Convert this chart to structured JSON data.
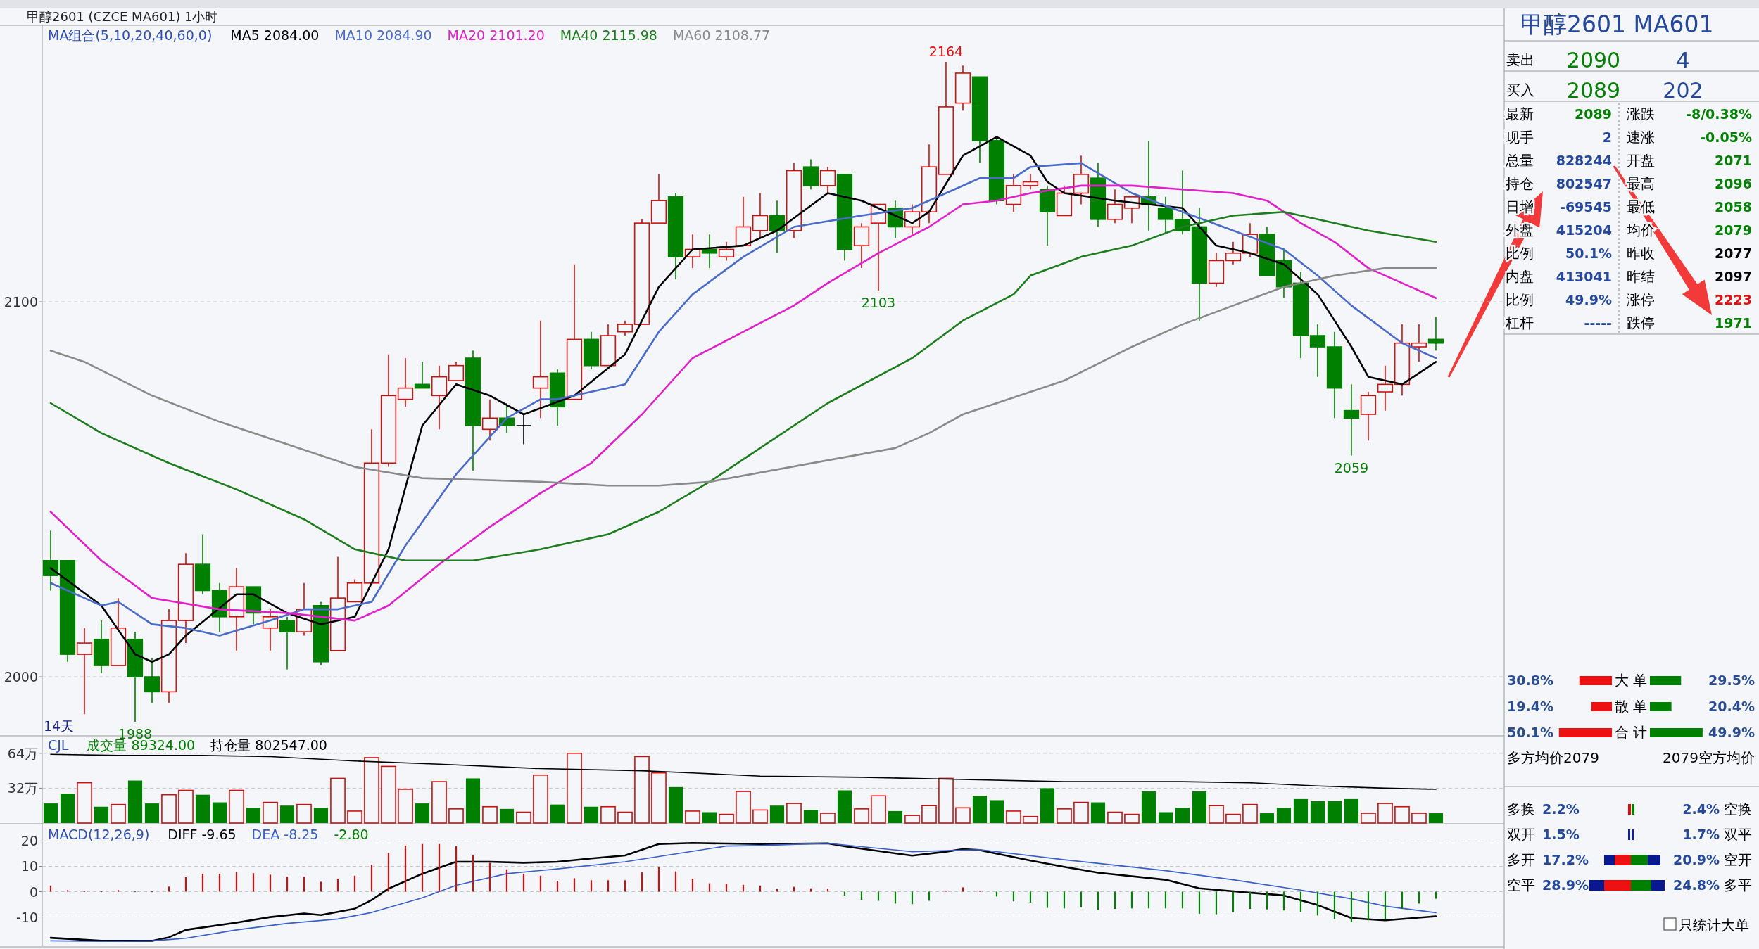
{
  "chart_data": [
    {
      "type": "candlestick",
      "title": "甲醇2601 (CZCE MA601)",
      "subtitle": "1小时",
      "legend_title": "MA组合(5,10,20,40,60,0)",
      "legend": "top left",
      "grid": "y",
      "ylim": [
        1985,
        2173
      ],
      "yticks": [
        2000,
        2100
      ],
      "categories": [
        null,
        null,
        null,
        null,
        null,
        null,
        null,
        null,
        null,
        null,
        null,
        null,
        null,
        null,
        null,
        null,
        null,
        null,
        null,
        null,
        null,
        null,
        null,
        null,
        null,
        null,
        null,
        null,
        null,
        null,
        null,
        null,
        null,
        null,
        null,
        null,
        null,
        null,
        null,
        null,
        null,
        null,
        null,
        null,
        null,
        null,
        null,
        null,
        null,
        null,
        null,
        null,
        null,
        null,
        null,
        null,
        null,
        null,
        null,
        null,
        null,
        null,
        null,
        null,
        null,
        null,
        null,
        null,
        null,
        null,
        null,
        null,
        null,
        null,
        null,
        null,
        null,
        null,
        null,
        null,
        null,
        null,
        null
      ],
      "ohlc": [
        [
          2031,
          2039,
          2023,
          2027
        ],
        [
          2031,
          2031,
          2004,
          2006
        ],
        [
          2006,
          2013,
          1990,
          2009
        ],
        [
          2010,
          2015,
          2001,
          2003
        ],
        [
          2003,
          2021,
          2003,
          2013
        ],
        [
          2010,
          2012,
          1988,
          2000
        ],
        [
          2000,
          2005,
          1993,
          1996
        ],
        [
          1996,
          2018,
          1993,
          2015
        ],
        [
          2015,
          2033,
          2009,
          2030
        ],
        [
          2030,
          2038,
          2022,
          2023
        ],
        [
          2023,
          2025,
          2012,
          2016
        ],
        [
          2016,
          2029,
          2007,
          2024
        ],
        [
          2024,
          2024,
          2014,
          2017
        ],
        [
          2013,
          2018,
          2007,
          2016
        ],
        [
          2015,
          2016,
          2002,
          2012
        ],
        [
          2012,
          2025,
          2011,
          2018
        ],
        [
          2019,
          2020,
          2003,
          2004
        ],
        [
          2007,
          2032,
          2007,
          2021
        ],
        [
          2020,
          2026,
          2020,
          2025
        ],
        [
          2025,
          2066,
          2025,
          2057
        ],
        [
          2057,
          2086,
          2056,
          2075
        ],
        [
          2074,
          2085,
          2072,
          2077
        ],
        [
          2078,
          2084,
          2077,
          2077
        ],
        [
          2075,
          2083,
          2066,
          2080
        ],
        [
          2079,
          2084,
          2079,
          2083
        ],
        [
          2085,
          2087,
          2055,
          2067
        ],
        [
          2066,
          2074,
          2063,
          2069
        ],
        [
          2069,
          2073,
          2065,
          2067
        ],
        [
          2067,
          2070,
          2062,
          2067
        ],
        [
          2077,
          2095,
          2069,
          2080
        ],
        [
          2081,
          2082,
          2067,
          2072
        ],
        [
          2074,
          2110,
          2074,
          2090
        ],
        [
          2090,
          2092,
          2082,
          2083
        ],
        [
          2083,
          2094,
          2083,
          2091
        ],
        [
          2092,
          2095,
          2091,
          2094
        ],
        [
          2094,
          2122,
          2094,
          2121
        ],
        [
          2121,
          2134,
          2121,
          2127
        ],
        [
          2128,
          2129,
          2106,
          2112
        ],
        [
          2112,
          2118,
          2109,
          2114
        ],
        [
          2114,
          2118,
          2109,
          2113
        ],
        [
          2112,
          2116,
          2111,
          2114
        ],
        [
          2115,
          2128,
          2115,
          2120
        ],
        [
          2119,
          2129,
          2117,
          2123
        ],
        [
          2123,
          2127,
          2113,
          2119
        ],
        [
          2119,
          2137,
          2117,
          2135
        ],
        [
          2136,
          2138,
          2130,
          2131
        ],
        [
          2131,
          2136,
          2129,
          2135
        ],
        [
          2134,
          2134,
          2111,
          2114
        ],
        [
          2115,
          2121,
          2109,
          2120
        ],
        [
          2121,
          2126,
          2103,
          2126
        ],
        [
          2125,
          2127,
          2117,
          2120
        ],
        [
          2120,
          2126,
          2118,
          2124
        ],
        [
          2124,
          2142,
          2121,
          2136
        ],
        [
          2134,
          2164,
          2134,
          2152
        ],
        [
          2153,
          2163,
          2151,
          2161
        ],
        [
          2160,
          2160,
          2137,
          2143
        ],
        [
          2143,
          2144,
          2126,
          2127
        ],
        [
          2126,
          2134,
          2124,
          2131
        ],
        [
          2131,
          2134,
          2130,
          2132
        ],
        [
          2130,
          2131,
          2115,
          2124
        ],
        [
          2123,
          2131,
          2123,
          2129
        ],
        [
          2129,
          2139,
          2126,
          2134
        ],
        [
          2133,
          2137,
          2120,
          2122
        ],
        [
          2122,
          2130,
          2121,
          2126
        ],
        [
          2125,
          2128,
          2121,
          2128
        ],
        [
          2128,
          2143,
          2119,
          2126
        ],
        [
          2125,
          2128,
          2118,
          2122
        ],
        [
          2122,
          2135,
          2118,
          2119
        ],
        [
          2120,
          2125,
          2095,
          2105
        ],
        [
          2105,
          2113,
          2104,
          2111
        ],
        [
          2111,
          2116,
          2110,
          2113
        ],
        [
          2113,
          2121,
          2112,
          2118
        ],
        [
          2118,
          2120,
          2107,
          2107
        ],
        [
          2111,
          2114,
          2101,
          2104
        ],
        [
          2105,
          2108,
          2085,
          2091
        ],
        [
          2091,
          2094,
          2080,
          2088
        ],
        [
          2088,
          2092,
          2069,
          2077
        ],
        [
          2071,
          2078,
          2059,
          2069
        ],
        [
          2070,
          2076,
          2063,
          2075
        ],
        [
          2076,
          2083,
          2071,
          2078
        ],
        [
          2078,
          2094,
          2075,
          2089
        ],
        [
          2088,
          2094,
          2084,
          2089
        ],
        [
          2090,
          2096,
          2087,
          2089
        ]
      ],
      "series": [
        {
          "name": "MA5 2084.00",
          "type": "line",
          "color": "#000000",
          "values": [
            2029,
            null,
            null,
            2019,
            null,
            2006,
            2004,
            2006,
            2011,
            null,
            null,
            2022,
            2022,
            null,
            2017,
            null,
            2014,
            null,
            2016,
            null,
            2034,
            null,
            2067,
            null,
            2078,
            null,
            2075,
            null,
            2070,
            null,
            null,
            2075,
            null,
            null,
            2086,
            null,
            2104,
            null,
            2114,
            null,
            null,
            2115,
            null,
            2119,
            null,
            null,
            2129,
            null,
            2127,
            null,
            null,
            2121,
            2124,
            null,
            2139,
            null,
            2144,
            null,
            2139,
            2132,
            2129,
            null,
            null,
            2127,
            null,
            null,
            null,
            2125,
            null,
            2115,
            null,
            2113,
            null,
            2110,
            null,
            2102,
            null,
            2088,
            2080,
            null,
            2078,
            null,
            2084
          ]
        },
        {
          "name": "MA10 2084.90",
          "type": "line",
          "color": "#4a6cc8",
          "values": [
            2025,
            null,
            2021,
            2019,
            2020,
            null,
            2014,
            null,
            2013,
            null,
            2011,
            null,
            null,
            2015,
            null,
            2018,
            null,
            2018,
            null,
            2020,
            null,
            2035,
            null,
            null,
            2054,
            null,
            null,
            2069,
            null,
            2074,
            2074,
            null,
            null,
            null,
            2078,
            null,
            2092,
            null,
            2102,
            null,
            null,
            2112,
            null,
            null,
            2120,
            null,
            null,
            null,
            2123,
            null,
            null,
            2125,
            null,
            null,
            null,
            2133,
            null,
            2133,
            2136,
            null,
            null,
            2137,
            null,
            null,
            2129,
            null,
            null,
            2124,
            null,
            null,
            2119,
            null,
            null,
            2114,
            null,
            2107,
            null,
            2099,
            null,
            null,
            2089,
            null,
            2085
          ]
        },
        {
          "name": "MA20 2101.20",
          "type": "line",
          "color": "#e020c8",
          "values": [
            2044,
            null,
            null,
            2031,
            null,
            null,
            2021,
            null,
            null,
            null,
            2018,
            null,
            null,
            null,
            2017,
            null,
            null,
            null,
            2015,
            null,
            2019,
            null,
            null,
            2030,
            null,
            null,
            2040,
            null,
            null,
            2049,
            null,
            null,
            2057,
            null,
            null,
            2070,
            null,
            null,
            2085,
            null,
            null,
            2092,
            null,
            null,
            2099,
            null,
            2105,
            null,
            null,
            2113,
            null,
            null,
            2120,
            null,
            2126,
            null,
            2127,
            null,
            2129,
            null,
            null,
            2131,
            null,
            null,
            2131,
            null,
            null,
            2130,
            null,
            null,
            2129,
            null,
            2127,
            null,
            2121,
            null,
            2116,
            null,
            2109,
            null,
            2105,
            null,
            2101
          ]
        },
        {
          "name": "MA40 2115.98",
          "type": "line",
          "color": "#1e7d1e",
          "values": [
            2073,
            null,
            null,
            2065,
            null,
            null,
            null,
            2057,
            null,
            null,
            null,
            2050,
            null,
            null,
            null,
            2042,
            null,
            null,
            2034,
            null,
            null,
            2031,
            null,
            null,
            null,
            2031,
            null,
            null,
            null,
            2034,
            null,
            null,
            null,
            2038,
            null,
            null,
            2044,
            null,
            null,
            2052,
            null,
            null,
            2061,
            null,
            null,
            null,
            2073,
            null,
            null,
            null,
            null,
            2085,
            null,
            null,
            2095,
            null,
            null,
            2102,
            2107,
            null,
            null,
            2112,
            null,
            null,
            2115,
            null,
            null,
            2120,
            null,
            null,
            2123,
            null,
            null,
            2124,
            null,
            2122,
            null,
            null,
            2119,
            null,
            null,
            null,
            2116
          ]
        },
        {
          "name": "MA60 2108.77",
          "type": "line",
          "color": "#8a8a8a",
          "values": [
            2087,
            null,
            2084,
            null,
            null,
            null,
            2075,
            null,
            null,
            null,
            2068,
            null,
            null,
            null,
            2062,
            null,
            null,
            null,
            2056,
            null,
            null,
            null,
            2053,
            null,
            null,
            null,
            null,
            null,
            null,
            2052,
            null,
            null,
            null,
            2051,
            null,
            null,
            2051,
            null,
            null,
            2052,
            null,
            null,
            null,
            null,
            null,
            null,
            null,
            null,
            null,
            null,
            2061,
            null,
            2065,
            null,
            2070,
            null,
            2073,
            null,
            null,
            null,
            2079,
            null,
            null,
            null,
            2088,
            null,
            null,
            2094,
            null,
            null,
            2099,
            null,
            null,
            2104,
            null,
            null,
            2107,
            null,
            null,
            2109,
            null,
            null,
            2109
          ]
        }
      ],
      "annotations": [
        {
          "text": "2164",
          "y": 2164
        },
        {
          "text": "2103",
          "y": 2103
        },
        {
          "text": "2059",
          "y": 2059
        },
        {
          "text": "1988",
          "y": 1988
        },
        "14天"
      ]
    },
    {
      "type": "bar",
      "legend_title": "CJL",
      "legend": "top left",
      "grid": "y",
      "ylim": [
        0,
        80
      ],
      "yticks": [
        {
          "value": 32,
          "label": "32万"
        },
        {
          "value": 64,
          "label": "64万"
        }
      ],
      "categories": [
        null,
        null,
        null,
        null,
        null,
        null,
        null,
        null,
        null,
        null,
        null,
        null,
        null,
        null,
        null,
        null,
        null,
        null,
        null,
        null,
        null,
        null,
        null,
        null,
        null,
        null,
        null,
        null,
        null,
        null,
        null,
        null,
        null,
        null,
        null,
        null,
        null,
        null,
        null,
        null,
        null,
        null,
        null,
        null,
        null,
        null,
        null,
        null,
        null,
        null,
        null,
        null,
        null,
        null,
        null,
        null,
        null,
        null,
        null,
        null,
        null,
        null,
        null,
        null,
        null,
        null,
        null,
        null,
        null,
        null,
        null,
        null,
        null,
        null,
        null,
        null,
        null,
        null,
        null,
        null,
        null,
        null,
        null
      ],
      "series": [
        {
          "name": "成交量 89324.00",
          "values": [
            18,
            27,
            37,
            15,
            17,
            39,
            18,
            26,
            30,
            26,
            19,
            30,
            14,
            19,
            16,
            17,
            14,
            41,
            11,
            60,
            52,
            31,
            18,
            38,
            13,
            41,
            15,
            13,
            10,
            44,
            17,
            64,
            15,
            15,
            10,
            61,
            46,
            33,
            11,
            10,
            8,
            29,
            12,
            16,
            18,
            12,
            9,
            30,
            13,
            25,
            11,
            7,
            16,
            41,
            14,
            25,
            21,
            11,
            6,
            32,
            13,
            19,
            19,
            10,
            8,
            29,
            10,
            14,
            29,
            16,
            8,
            17,
            9,
            14,
            22,
            20,
            20,
            22,
            9,
            18,
            15,
            9,
            9
          ],
          "colors": [
            "#008000",
            "#008000",
            "#d01010",
            "#008000",
            "#d01010",
            "#008000",
            "#008000",
            "#d01010",
            "#d01010",
            "#008000",
            "#008000",
            "#d01010",
            "#008000",
            "#d01010",
            "#008000",
            "#d01010",
            "#008000",
            "#d01010",
            "#d01010",
            "#d01010",
            "#d01010",
            "#d01010",
            "#008000",
            "#d01010",
            "#d01010",
            "#008000",
            "#d01010",
            "#008000",
            "#d01010",
            "#d01010",
            "#008000",
            "#d01010",
            "#008000",
            "#d01010",
            "#d01010",
            "#d01010",
            "#d01010",
            "#008000",
            "#d01010",
            "#008000",
            "#d01010",
            "#d01010",
            "#d01010",
            "#008000",
            "#d01010",
            "#008000",
            "#d01010",
            "#008000",
            "#d01010",
            "#d01010",
            "#008000",
            "#d01010",
            "#d01010",
            "#d01010",
            "#d01010",
            "#008000",
            "#008000",
            "#d01010",
            "#d01010",
            "#008000",
            "#d01010",
            "#d01010",
            "#008000",
            "#d01010",
            "#d01010",
            "#008000",
            "#008000",
            "#008000",
            "#008000",
            "#d01010",
            "#d01010",
            "#d01010",
            "#008000",
            "#008000",
            "#008000",
            "#008000",
            "#008000",
            "#008000",
            "#d01010",
            "#d01010",
            "#d01010",
            "#d01010",
            "#008000"
          ]
        },
        {
          "name": "持仓量 802547.00",
          "type": "line",
          "color": "#000000",
          "values": [
            63,
            null,
            null,
            null,
            62,
            null,
            null,
            null,
            null,
            62,
            null,
            null,
            null,
            61,
            null,
            null,
            null,
            null,
            57,
            null,
            null,
            null,
            null,
            54,
            null,
            null,
            null,
            null,
            null,
            50,
            null,
            null,
            null,
            null,
            null,
            48,
            null,
            null,
            46,
            null,
            null,
            null,
            43,
            null,
            null,
            null,
            null,
            null,
            42,
            null,
            null,
            null,
            null,
            null,
            40,
            null,
            null,
            null,
            null,
            null,
            38,
            null,
            null,
            null,
            null,
            null,
            null,
            38,
            null,
            null,
            null,
            37,
            null,
            null,
            null,
            34,
            null,
            null,
            null,
            32,
            null,
            null,
            31
          ]
        }
      ]
    },
    {
      "type": "bar",
      "legend_title": "MACD(12,26,9)",
      "legend": "top left",
      "grid": "y",
      "ylim": [
        -21.5,
        26.5
      ],
      "yticks": [
        -10,
        0,
        10,
        20
      ],
      "categories": [
        null,
        null,
        null,
        null,
        null,
        null,
        null,
        null,
        null,
        null,
        null,
        null,
        null,
        null,
        null,
        null,
        null,
        null,
        null,
        null,
        null,
        null,
        null,
        null,
        null,
        null,
        null,
        null,
        null,
        null,
        null,
        null,
        null,
        null,
        null,
        null,
        null,
        null,
        null,
        null,
        null,
        null,
        null,
        null,
        null,
        null,
        null,
        null,
        null,
        null,
        null,
        null,
        null,
        null,
        null,
        null,
        null,
        null,
        null,
        null,
        null,
        null,
        null,
        null,
        null,
        null,
        null,
        null,
        null,
        null,
        null,
        null,
        null,
        null,
        null,
        null,
        null,
        null,
        null,
        null,
        null,
        null,
        null
      ],
      "series": [
        {
          "name": "DIFF -9.65",
          "type": "line",
          "color": "#000000",
          "values": [
            -18.2,
            null,
            null,
            -19.4,
            null,
            null,
            -19.4,
            -18.0,
            -15.1,
            null,
            null,
            -12.2,
            null,
            -10.0,
            null,
            -8.6,
            -9.2,
            null,
            -6.7,
            -3.3,
            1.2,
            null,
            7.1,
            null,
            11.8,
            null,
            11.8,
            null,
            11.4,
            null,
            11.8,
            null,
            13.1,
            null,
            14.3,
            null,
            18.8,
            null,
            19.2,
            null,
            null,
            null,
            18.8,
            null,
            null,
            null,
            19.1,
            17.9,
            null,
            null,
            null,
            14.2,
            null,
            15.8,
            16.8,
            16.4,
            null,
            null,
            12.3,
            null,
            9.8,
            null,
            7.5,
            null,
            null,
            null,
            4.7,
            null,
            1.3,
            null,
            null,
            -0.4,
            null,
            -1.5,
            null,
            -5.3,
            null,
            -10.4,
            -10.9,
            -11.3,
            null,
            null,
            -9.7
          ]
        },
        {
          "name": "DEA -8.25",
          "type": "line",
          "color": "#3a5fc8",
          "values": [
            -19.4,
            null,
            null,
            -19.6,
            null,
            null,
            -19.4,
            null,
            -18.4,
            null,
            null,
            -15.1,
            null,
            null,
            -12.5,
            null,
            null,
            -10.8,
            null,
            -8.2,
            null,
            null,
            -2.4,
            null,
            2.5,
            null,
            null,
            7.1,
            null,
            null,
            9.0,
            null,
            null,
            null,
            11.8,
            null,
            null,
            14.9,
            null,
            null,
            18.0,
            null,
            18.2,
            null,
            null,
            null,
            19.1,
            null,
            null,
            null,
            null,
            15.8,
            null,
            null,
            null,
            16.6,
            null,
            null,
            null,
            null,
            12.6,
            null,
            null,
            null,
            null,
            null,
            8.3,
            null,
            null,
            null,
            4.7,
            null,
            null,
            null,
            0.6,
            null,
            null,
            -2.8,
            null,
            -5.7,
            null,
            null,
            -8.3
          ]
        },
        {
          "name": "-2.80",
          "values": [
            2.4,
            0.6,
            0.2,
            0.1,
            0.6,
            0.1,
            0.1,
            2.0,
            5.7,
            7.1,
            7.1,
            7.8,
            7.3,
            6.7,
            5.9,
            5.9,
            3.9,
            5.1,
            6.3,
            10.6,
            15.3,
            18.2,
            18.8,
            18.8,
            18.0,
            14.5,
            11.4,
            8.8,
            7.1,
            6.3,
            4.3,
            5.3,
            4.5,
            4.5,
            4.5,
            7.6,
            9.6,
            8.0,
            5.1,
            3.3,
            3.1,
            2.7,
            2.4,
            1.1,
            1.9,
            1.3,
            1.1,
            -1.5,
            -3.2,
            -3.6,
            -4.7,
            -4.9,
            -3.6,
            0.4,
            1.7,
            0.4,
            -1.9,
            -3.8,
            -4.3,
            -6.4,
            -6.6,
            -6.2,
            -7.2,
            -6.8,
            -6.6,
            -6.6,
            -6.6,
            -6.6,
            -8.7,
            -8.9,
            -8.1,
            -6.8,
            -7.0,
            -7.4,
            -7.9,
            -9.4,
            -10.8,
            -11.9,
            -11.3,
            -10.8,
            -6.8,
            -4.7,
            -2.8
          ],
          "colors": [
            "#d01010",
            "#d01010",
            "#d01010",
            "#d01010",
            "#d01010",
            "#d01010",
            "#d01010",
            "#d01010",
            "#d01010",
            "#d01010",
            "#d01010",
            "#d01010",
            "#d01010",
            "#d01010",
            "#d01010",
            "#d01010",
            "#d01010",
            "#d01010",
            "#d01010",
            "#d01010",
            "#d01010",
            "#d01010",
            "#d01010",
            "#d01010",
            "#d01010",
            "#d01010",
            "#d01010",
            "#d01010",
            "#d01010",
            "#d01010",
            "#d01010",
            "#d01010",
            "#d01010",
            "#d01010",
            "#d01010",
            "#d01010",
            "#d01010",
            "#d01010",
            "#d01010",
            "#d01010",
            "#d01010",
            "#d01010",
            "#d01010",
            "#d01010",
            "#d01010",
            "#d01010",
            "#d01010",
            "#008000",
            "#008000",
            "#008000",
            "#008000",
            "#008000",
            "#008000",
            "#d01010",
            "#d01010",
            "#d01010",
            "#008000",
            "#008000",
            "#008000",
            "#008000",
            "#008000",
            "#008000",
            "#008000",
            "#008000",
            "#008000",
            "#008000",
            "#008000",
            "#008000",
            "#008000",
            "#008000",
            "#008000",
            "#008000",
            "#008000",
            "#008000",
            "#008000",
            "#008000",
            "#008000",
            "#008000",
            "#008000",
            "#008000",
            "#008000",
            "#008000",
            "#008000"
          ]
        }
      ]
    },
    {
      "type": "other",
      "title": "甲醇2601  MA601",
      "annotations": [
        "卖出",
        "2090",
        "4",
        "买入",
        "2089",
        "202",
        "最新",
        "2089",
        "涨跌",
        "-8/0.38%",
        "现手",
        "2",
        "速涨",
        "-0.05%",
        "总量",
        "828244",
        "开盘",
        "2071",
        "持仓",
        "802547",
        "最高",
        "2096",
        "日增",
        "-69545",
        "最低",
        "2058",
        "外盘",
        "415204",
        "均价",
        "2079",
        "比例",
        "50.1%",
        "昨收",
        "2077",
        "内盘",
        "413041",
        "昨结",
        "2097",
        "比例",
        "49.9%",
        "涨停",
        "2223",
        "杠杆",
        "-----",
        "跌停",
        "1971",
        "多换",
        "2.2%",
        "2.4%",
        "空换",
        "双开",
        "1.5%",
        "1.7%",
        "双平",
        "多开",
        "17.2%",
        "20.9%",
        "空开",
        "空平",
        "28.9%",
        "24.8%",
        "多平",
        "只统计大单"
      ]
    },
    {
      "type": "other",
      "categories": [
        "大 单",
        "散 单",
        "合 计"
      ],
      "series": [
        {
          "color": "#ee1111",
          "values": [
            30.8,
            19.4,
            50.1
          ],
          "value_labels": [
            "30.8%",
            "19.4%",
            "50.1%"
          ]
        },
        {
          "color": "#008000",
          "values": [
            29.5,
            20.4,
            49.9
          ],
          "value_labels": [
            "29.5%",
            "20.4%",
            "49.9%"
          ]
        }
      ],
      "annotations": [
        "多方均价2079",
        "2079空方均价"
      ]
    }
  ]
}
